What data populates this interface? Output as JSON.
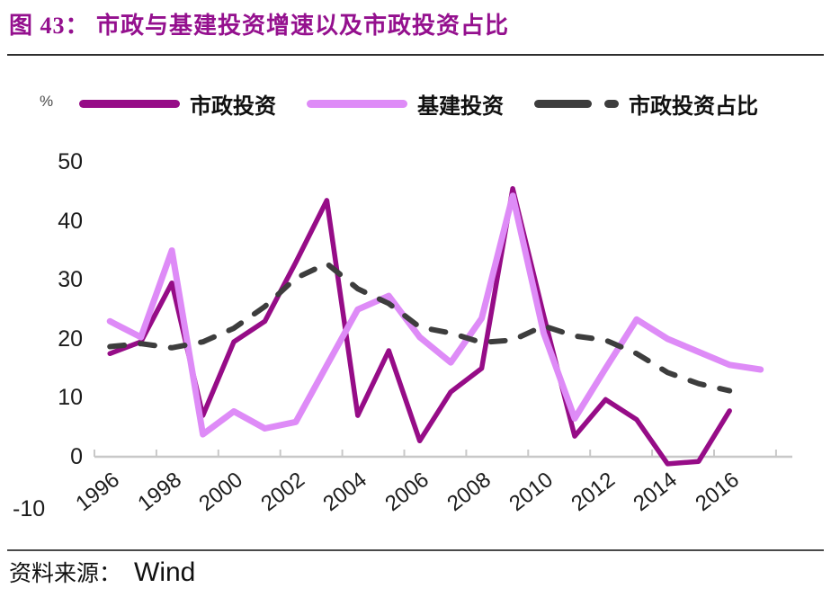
{
  "title": "图 43： 市政与基建投资增速以及市政投资占比",
  "unit_label": "%",
  "footer": {
    "label": "资料来源：",
    "value": "Wind"
  },
  "chart_data": {
    "type": "line",
    "title": "市政与基建投资增速以及市政投资占比",
    "xlabel": "",
    "ylabel": "%",
    "ylim": [
      -10,
      50
    ],
    "grid": false,
    "legend_position": "top",
    "x": [
      1996,
      1997,
      1998,
      1999,
      2000,
      2001,
      2002,
      2003,
      2004,
      2005,
      2006,
      2007,
      2008,
      2009,
      2010,
      2011,
      2012,
      2013,
      2014,
      2015,
      2016,
      2017
    ],
    "y_tick_labels": [
      "50",
      "40",
      "30",
      "20",
      "10",
      "0",
      "-10"
    ],
    "y_tick_values": [
      50,
      40,
      30,
      20,
      10,
      0,
      -10
    ],
    "x_tick_labels": [
      "1996",
      "1998",
      "2000",
      "2002",
      "2004",
      "2006",
      "2008",
      "2010",
      "2012",
      "2014",
      "2016"
    ],
    "series": [
      {
        "name": "市政投资",
        "color": "#960C87",
        "style": "solid",
        "values": [
          17.5,
          19.5,
          29.5,
          7.0,
          19.5,
          23.0,
          33.0,
          43.5,
          7.0,
          18.0,
          2.7,
          11.0,
          15.0,
          45.5,
          24.0,
          3.5,
          9.7,
          6.3,
          -1.2,
          -0.8,
          7.8,
          null
        ]
      },
      {
        "name": "基建投资",
        "color": "#DE8BF7",
        "style": "solid",
        "values": [
          23.0,
          20.3,
          35.0,
          3.8,
          7.7,
          4.8,
          5.9,
          15.5,
          25.0,
          27.3,
          20.3,
          16.0,
          23.5,
          44.3,
          21.0,
          6.5,
          15.0,
          23.3,
          20.0,
          17.8,
          15.6,
          14.8
        ]
      },
      {
        "name": "市政投资占比",
        "color": "#3D3D3D",
        "style": "dashed",
        "values": [
          18.7,
          19.2,
          18.5,
          19.5,
          21.8,
          25.5,
          30.3,
          32.8,
          28.5,
          26.0,
          22.0,
          21.0,
          19.4,
          19.8,
          22.2,
          20.5,
          19.8,
          17.5,
          14.3,
          12.4,
          11.2,
          null
        ]
      }
    ],
    "axis_color": "#C8C8C8"
  }
}
